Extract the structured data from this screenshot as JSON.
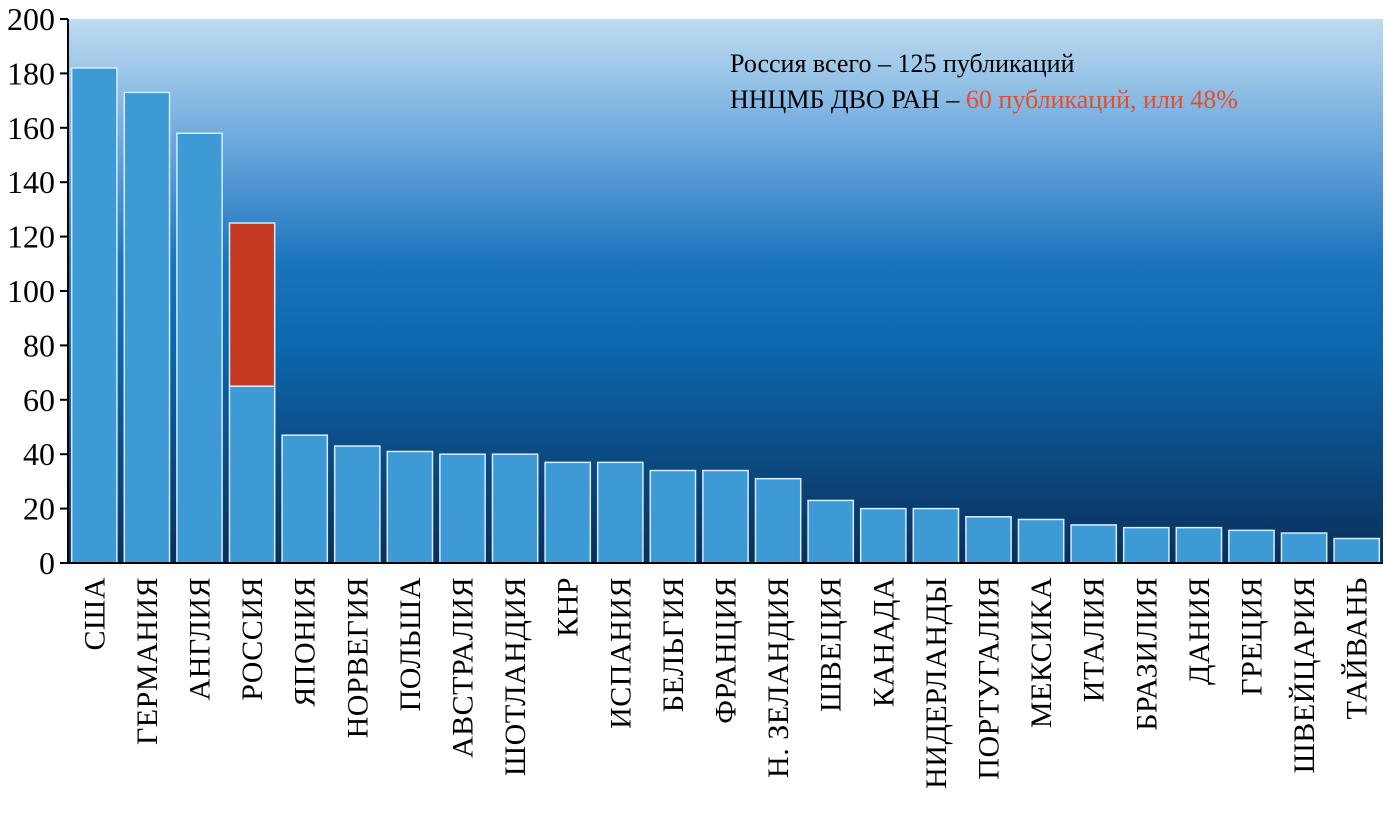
{
  "chart_data": {
    "type": "bar",
    "title": "",
    "xlabel": "",
    "ylabel": "",
    "ylim": [
      0,
      200
    ],
    "yticks": [
      0,
      20,
      40,
      60,
      80,
      100,
      120,
      140,
      160,
      180,
      200
    ],
    "grid": false,
    "legend": "none",
    "categories": [
      "США",
      "ГЕРМАНИЯ",
      "АНГЛИЯ",
      "РОССИЯ",
      "ЯПОНИЯ",
      "НОРВЕГИЯ",
      "ПОЛЬША",
      "АВСТРАЛИЯ",
      "ШОТЛАНДИЯ",
      "КНР",
      "ИСПАНИЯ",
      "БЕЛЬГИЯ",
      "ФРАНЦИЯ",
      "Н. ЗЕЛАНДИЯ",
      "ШВЕЦИЯ",
      "КАНАДА",
      "НИДЕРЛАНДЫ",
      "ПОРТУГАЛИЯ",
      "МЕКСИКА",
      "ИТАЛИЯ",
      "БРАЗИЛИЯ",
      "ДАНИЯ",
      "ГРЕЦИЯ",
      "ШВЕЙЦАРИЯ",
      "ТАЙВАНЬ"
    ],
    "values": [
      182,
      173,
      158,
      125,
      47,
      43,
      41,
      40,
      40,
      37,
      37,
      34,
      34,
      31,
      23,
      20,
      20,
      17,
      16,
      14,
      13,
      13,
      12,
      11,
      9
    ],
    "highlight": {
      "category": "РОССИЯ",
      "base_value": 65,
      "total_value": 125,
      "base_color": "#3d9ad4",
      "highlight_color": "#c63a23"
    },
    "annotations": {
      "line1": "Россия всего – 125 публикаций",
      "line2_prefix": "ННЦМБ ДВО РАН –",
      "line2_highlight": " 60 публикаций, или 48%"
    },
    "colors": {
      "bar": "#3d9ad4",
      "bar_stroke": "#d6ecfa",
      "bg_top": "#bfdcf0",
      "bg_mid": "#0d6db1",
      "bg_bottom": "#0a2f5a",
      "annotation_highlight": "#e24f2a"
    }
  }
}
